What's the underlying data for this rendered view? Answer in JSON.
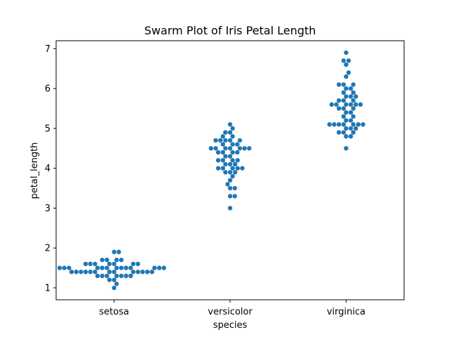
{
  "chart_data": {
    "type": "scatter",
    "subtype": "swarm",
    "title": "Swarm Plot of Iris Petal Length",
    "xlabel": "species",
    "ylabel": "petal_length",
    "categories": [
      "setosa",
      "versicolor",
      "virginica"
    ],
    "yticks": [
      1,
      2,
      3,
      4,
      5,
      6,
      7
    ],
    "ylim": [
      0.7,
      7.2
    ],
    "grid": false,
    "point_color": "#1f77b4",
    "series": [
      {
        "values": [
          1.4,
          1.4,
          1.3,
          1.5,
          1.4,
          1.7,
          1.4,
          1.5,
          1.4,
          1.5,
          1.5,
          1.6,
          1.4,
          1.1,
          1.2,
          1.5,
          1.3,
          1.4,
          1.7,
          1.5,
          1.7,
          1.5,
          1.0,
          1.7,
          1.9,
          1.6,
          1.6,
          1.5,
          1.4,
          1.6,
          1.6,
          1.5,
          1.5,
          1.4,
          1.5,
          1.2,
          1.3,
          1.4,
          1.3,
          1.5,
          1.3,
          1.3,
          1.3,
          1.6,
          1.9,
          1.4,
          1.6,
          1.4,
          1.5,
          1.4
        ]
      },
      {
        "values": [
          4.7,
          4.5,
          4.9,
          4.0,
          4.6,
          4.5,
          4.7,
          3.3,
          4.6,
          3.9,
          3.5,
          4.2,
          4.0,
          4.7,
          3.6,
          4.4,
          4.5,
          4.1,
          4.5,
          3.9,
          4.8,
          4.0,
          4.9,
          4.7,
          4.3,
          4.4,
          4.8,
          5.0,
          4.5,
          3.5,
          3.8,
          3.7,
          3.9,
          5.1,
          4.5,
          4.5,
          4.7,
          4.4,
          4.1,
          4.0,
          4.4,
          4.6,
          4.0,
          3.3,
          4.2,
          4.2,
          4.2,
          4.3,
          3.0,
          4.1
        ]
      },
      {
        "values": [
          6.0,
          5.1,
          5.9,
          5.6,
          5.8,
          6.6,
          4.5,
          6.3,
          5.8,
          6.1,
          5.1,
          5.3,
          5.5,
          5.0,
          5.1,
          5.3,
          5.5,
          6.7,
          6.9,
          5.0,
          5.7,
          4.9,
          6.7,
          4.9,
          5.7,
          6.0,
          4.8,
          4.9,
          5.6,
          5.8,
          6.1,
          6.4,
          5.6,
          5.1,
          5.6,
          6.1,
          5.6,
          5.5,
          4.8,
          5.4,
          5.6,
          5.1,
          5.1,
          5.9,
          5.7,
          5.2,
          5.0,
          5.2,
          5.4,
          5.1
        ]
      }
    ]
  }
}
